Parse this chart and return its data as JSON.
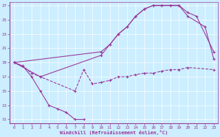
{
  "title": "",
  "xlabel": "Windchill (Refroidissement éolien,°C)",
  "ylabel": "",
  "bg_color": "#cceeff",
  "grid_color": "#ffffff",
  "line_color": "#993399",
  "xlim": [
    -0.5,
    23.5
  ],
  "ylim": [
    10.5,
    27.5
  ],
  "yticks": [
    11,
    13,
    15,
    17,
    19,
    21,
    23,
    25,
    27
  ],
  "xticks": [
    0,
    1,
    2,
    3,
    4,
    5,
    6,
    7,
    8,
    9,
    10,
    11,
    12,
    13,
    14,
    15,
    16,
    17,
    18,
    19,
    20,
    21,
    22,
    23
  ],
  "line1_x": [
    0,
    1,
    2,
    3,
    4,
    5,
    6,
    7,
    8
  ],
  "line1_y": [
    19.0,
    18.5,
    17.0,
    15.0,
    13.0,
    12.5,
    12.0,
    11.0,
    11.0
  ],
  "line2_x": [
    0,
    1,
    2,
    3,
    7,
    8,
    9,
    10,
    11,
    12,
    13,
    14,
    15,
    16,
    17,
    18,
    19,
    20,
    23
  ],
  "line2_y": [
    19.0,
    18.5,
    17.5,
    17.0,
    15.0,
    18.0,
    16.0,
    16.2,
    16.5,
    17.0,
    17.0,
    17.3,
    17.5,
    17.5,
    17.8,
    18.0,
    18.0,
    18.3,
    18.0
  ],
  "line3_x": [
    0,
    3,
    10,
    11,
    12,
    13,
    14,
    15,
    16,
    17,
    18,
    19,
    20,
    22,
    23
  ],
  "line3_y": [
    19.0,
    17.0,
    20.0,
    21.5,
    23.0,
    24.0,
    25.5,
    26.5,
    27.0,
    27.0,
    27.0,
    27.0,
    25.5,
    24.0,
    19.5
  ],
  "line4_x": [
    0,
    10,
    11,
    12,
    13,
    14,
    15,
    16,
    17,
    18,
    19,
    20,
    21,
    23
  ],
  "line4_y": [
    19.0,
    20.5,
    21.5,
    23.0,
    24.0,
    25.5,
    26.5,
    27.0,
    27.0,
    27.0,
    27.0,
    26.0,
    25.5,
    20.5
  ]
}
